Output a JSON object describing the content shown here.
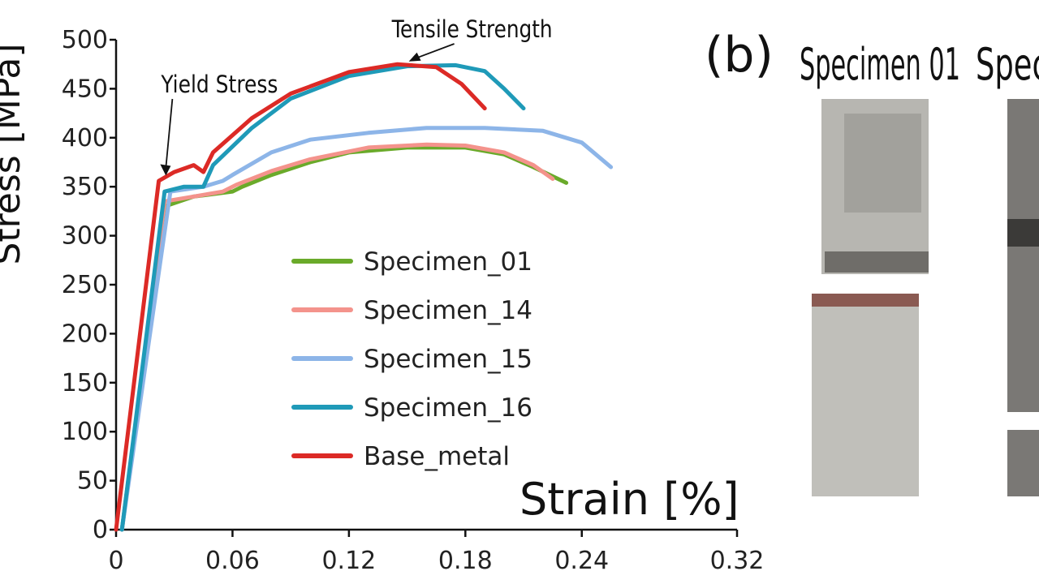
{
  "panel_label": "(b)",
  "photo_captions": [
    "Specimen 01",
    "Speci"
  ],
  "chart_data": {
    "type": "line",
    "title": "",
    "xlabel": "Strain [%]",
    "ylabel": "Stress [MPa]",
    "xlim": [
      0,
      0.32
    ],
    "ylim": [
      0,
      500
    ],
    "xticks": [
      0,
      0.06,
      0.12,
      0.18,
      0.24,
      0.32
    ],
    "xtick_labels": [
      "0",
      "0.06",
      "0.12",
      "0.18",
      "0.24",
      "0.32"
    ],
    "yticks": [
      0,
      50,
      100,
      150,
      200,
      250,
      300,
      350,
      400,
      450,
      500
    ],
    "ytick_labels": [
      "0",
      "50",
      "100",
      "150",
      "200",
      "250",
      "300",
      "350",
      "400",
      "450",
      "500"
    ],
    "legend_position": "center-right",
    "annotations": [
      {
        "text": "Yield Stress",
        "x": 0.024,
        "y": 358
      },
      {
        "text": "Tensile Strength",
        "x": 0.15,
        "y": 477
      }
    ],
    "series": [
      {
        "name": "Specimen_01",
        "color": "#6aaa2a",
        "x": [
          0.003,
          0.025,
          0.04,
          0.06,
          0.065,
          0.08,
          0.1,
          0.12,
          0.15,
          0.18,
          0.2,
          0.215,
          0.232
        ],
        "y": [
          0,
          330,
          340,
          345,
          350,
          362,
          375,
          385,
          390,
          390,
          383,
          370,
          354
        ]
      },
      {
        "name": "Specimen_14",
        "color": "#f4938c",
        "x": [
          0.003,
          0.025,
          0.04,
          0.055,
          0.062,
          0.08,
          0.1,
          0.13,
          0.16,
          0.18,
          0.2,
          0.215,
          0.225
        ],
        "y": [
          0,
          335,
          340,
          345,
          352,
          366,
          378,
          390,
          393,
          392,
          385,
          372,
          358
        ]
      },
      {
        "name": "Specimen_15",
        "color": "#8db5e8",
        "x": [
          0.003,
          0.028,
          0.045,
          0.055,
          0.06,
          0.08,
          0.1,
          0.13,
          0.16,
          0.19,
          0.22,
          0.24,
          0.255
        ],
        "y": [
          0,
          345,
          350,
          356,
          362,
          385,
          398,
          405,
          410,
          410,
          407,
          395,
          370
        ]
      },
      {
        "name": "Specimen_16",
        "color": "#1f9ab8",
        "x": [
          0.003,
          0.025,
          0.035,
          0.045,
          0.05,
          0.07,
          0.09,
          0.12,
          0.15,
          0.175,
          0.19,
          0.2,
          0.21
        ],
        "y": [
          0,
          345,
          350,
          350,
          372,
          410,
          440,
          463,
          473,
          474,
          468,
          450,
          430
        ]
      },
      {
        "name": "Base_metal",
        "color": "#dc2a26",
        "x": [
          0.0,
          0.022,
          0.03,
          0.04,
          0.045,
          0.05,
          0.07,
          0.09,
          0.12,
          0.145,
          0.165,
          0.178,
          0.19
        ],
        "y": [
          0,
          356,
          365,
          372,
          365,
          385,
          420,
          445,
          467,
          475,
          472,
          455,
          430
        ]
      }
    ]
  }
}
